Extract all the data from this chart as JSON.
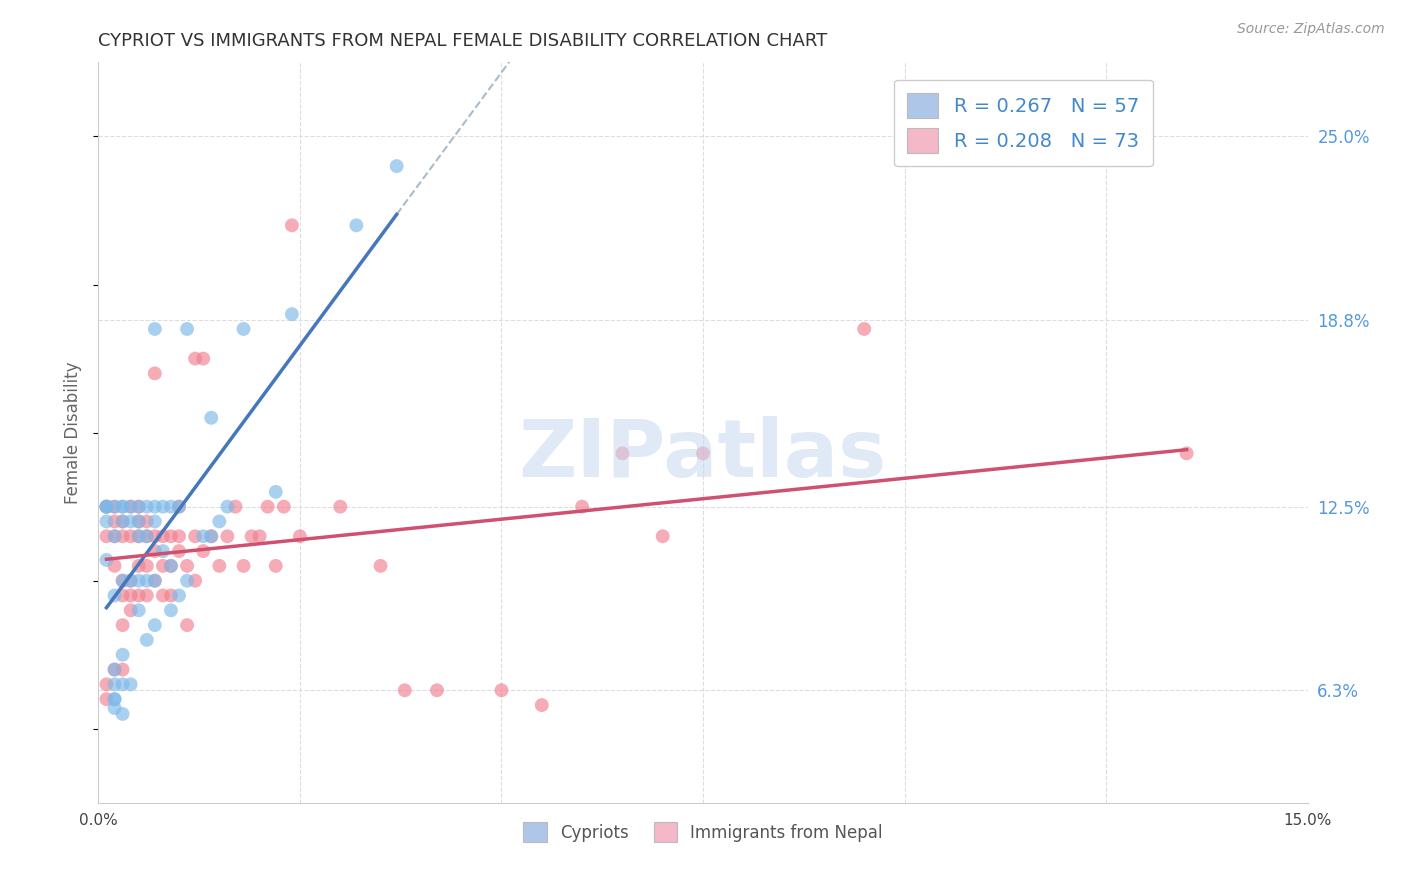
{
  "title": "CYPRIOT VS IMMIGRANTS FROM NEPAL FEMALE DISABILITY CORRELATION CHART",
  "source": "Source: ZipAtlas.com",
  "ylabel": "Female Disability",
  "xlim": [
    0.0,
    0.15
  ],
  "ylim": [
    0.025,
    0.275
  ],
  "ytick_labels_right": [
    "6.3%",
    "12.5%",
    "18.8%",
    "25.0%"
  ],
  "yticks_right": [
    0.063,
    0.125,
    0.188,
    0.25
  ],
  "legend_label1": "R = 0.267   N = 57",
  "legend_label2": "R = 0.208   N = 73",
  "legend_color1": "#aec6e8",
  "legend_color2": "#f4b8c8",
  "watermark": "ZIPatlas",
  "watermark_color": "#c8d8f0",
  "series1_color": "#7db8e8",
  "series2_color": "#f08090",
  "trendline1_color": "#4477bb",
  "trendline2_color": "#d05070",
  "dashed_line_color": "#aabbcc",
  "grid_color": "#dddddd",
  "title_color": "#333333",
  "axis_label_color": "#666666",
  "right_tick_color": "#5599dd",
  "bottom_label1": "Cypriots",
  "bottom_label2": "Immigrants from Nepal",
  "cypriot_x": [
    0.001,
    0.001,
    0.001,
    0.001,
    0.001,
    0.002,
    0.002,
    0.002,
    0.002,
    0.002,
    0.002,
    0.002,
    0.002,
    0.003,
    0.003,
    0.003,
    0.003,
    0.003,
    0.003,
    0.003,
    0.004,
    0.004,
    0.004,
    0.004,
    0.005,
    0.005,
    0.005,
    0.005,
    0.005,
    0.006,
    0.006,
    0.006,
    0.006,
    0.007,
    0.007,
    0.007,
    0.007,
    0.007,
    0.008,
    0.008,
    0.009,
    0.009,
    0.009,
    0.01,
    0.01,
    0.011,
    0.011,
    0.013,
    0.014,
    0.014,
    0.015,
    0.016,
    0.018,
    0.022,
    0.024,
    0.032,
    0.037
  ],
  "cypriot_y": [
    0.107,
    0.12,
    0.125,
    0.125,
    0.125,
    0.057,
    0.06,
    0.06,
    0.065,
    0.07,
    0.095,
    0.115,
    0.125,
    0.055,
    0.065,
    0.075,
    0.1,
    0.12,
    0.125,
    0.125,
    0.065,
    0.1,
    0.12,
    0.125,
    0.09,
    0.1,
    0.115,
    0.12,
    0.125,
    0.08,
    0.1,
    0.115,
    0.125,
    0.085,
    0.1,
    0.12,
    0.125,
    0.185,
    0.11,
    0.125,
    0.09,
    0.105,
    0.125,
    0.095,
    0.125,
    0.1,
    0.185,
    0.115,
    0.115,
    0.155,
    0.12,
    0.125,
    0.185,
    0.13,
    0.19,
    0.22,
    0.24
  ],
  "nepal_x": [
    0.001,
    0.001,
    0.001,
    0.001,
    0.002,
    0.002,
    0.002,
    0.002,
    0.002,
    0.003,
    0.003,
    0.003,
    0.003,
    0.003,
    0.003,
    0.004,
    0.004,
    0.004,
    0.004,
    0.004,
    0.005,
    0.005,
    0.005,
    0.005,
    0.005,
    0.006,
    0.006,
    0.006,
    0.006,
    0.007,
    0.007,
    0.007,
    0.007,
    0.008,
    0.008,
    0.008,
    0.009,
    0.009,
    0.009,
    0.01,
    0.01,
    0.01,
    0.011,
    0.011,
    0.012,
    0.012,
    0.012,
    0.013,
    0.013,
    0.014,
    0.015,
    0.016,
    0.017,
    0.018,
    0.019,
    0.02,
    0.021,
    0.022,
    0.023,
    0.024,
    0.025,
    0.03,
    0.035,
    0.038,
    0.042,
    0.05,
    0.055,
    0.06,
    0.065,
    0.07,
    0.075,
    0.095,
    0.135
  ],
  "nepal_y": [
    0.06,
    0.065,
    0.115,
    0.125,
    0.07,
    0.105,
    0.115,
    0.12,
    0.125,
    0.07,
    0.085,
    0.095,
    0.1,
    0.115,
    0.12,
    0.09,
    0.095,
    0.1,
    0.115,
    0.125,
    0.095,
    0.105,
    0.115,
    0.12,
    0.125,
    0.095,
    0.105,
    0.115,
    0.12,
    0.1,
    0.11,
    0.115,
    0.17,
    0.095,
    0.105,
    0.115,
    0.095,
    0.105,
    0.115,
    0.11,
    0.115,
    0.125,
    0.085,
    0.105,
    0.1,
    0.115,
    0.175,
    0.11,
    0.175,
    0.115,
    0.105,
    0.115,
    0.125,
    0.105,
    0.115,
    0.115,
    0.125,
    0.105,
    0.125,
    0.22,
    0.115,
    0.125,
    0.105,
    0.063,
    0.063,
    0.063,
    0.058,
    0.125,
    0.143,
    0.115,
    0.143,
    0.185,
    0.143
  ]
}
